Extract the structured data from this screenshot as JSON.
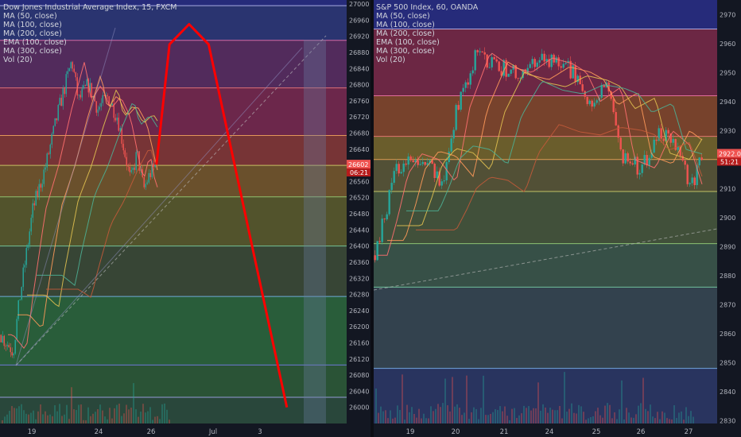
{
  "colors": {
    "background": "#131722",
    "up_candle": "#26a69a",
    "down_candle": "#ef5350",
    "price_tag": "#ef5350",
    "forecast_arc": "#ff0000",
    "axis_text": "#b2b5be"
  },
  "panels": [
    {
      "id": "dji",
      "title": "Dow Jones Industrial Average Index, 15, FXCM",
      "indicators": [
        "MA (50, close)",
        "MA (100, close)",
        "MA (200, close)",
        "EMA (100, close)",
        "MA (300, close)",
        "Vol (20)"
      ],
      "price_tag": {
        "value": "26602",
        "countdown": "06:21"
      },
      "x_ticks": [
        "19",
        "24",
        "26",
        "Jul",
        "3"
      ]
    },
    {
      "id": "spx",
      "title": "S&P 500 Index, 60, OANDA",
      "indicators": [
        "MA (50, close)",
        "MA (100, close)",
        "MA (200, close)",
        "EMA (100, close)",
        "MA (300, close)",
        "Vol (20)"
      ],
      "price_tag": {
        "value": "2922.0",
        "countdown": "51:21"
      },
      "x_ticks": [
        "19",
        "20",
        "21",
        "24",
        "25",
        "26",
        "27"
      ]
    }
  ],
  "chart_data": [
    {
      "type": "candlestick",
      "title": "Dow Jones Industrial Average Index, 15, FXCM",
      "ylim": [
        25960,
        27010
      ],
      "y_ticks": [
        27000,
        26960,
        26920,
        26880,
        26840,
        26800,
        26760,
        26720,
        26680,
        26640,
        26600,
        26560,
        26520,
        26480,
        26440,
        26400,
        26360,
        26320,
        26280,
        26240,
        26200,
        26160,
        26120,
        26080,
        26040,
        26000
      ],
      "x_tick_labels": [
        "19",
        "24",
        "26",
        "Jul",
        "3"
      ],
      "close_path": [
        {
          "x": 0.0,
          "y": 26180
        },
        {
          "x": 0.04,
          "y": 26140
        },
        {
          "x": 0.06,
          "y": 26270
        },
        {
          "x": 0.1,
          "y": 26490
        },
        {
          "x": 0.14,
          "y": 26600
        },
        {
          "x": 0.18,
          "y": 26740
        },
        {
          "x": 0.22,
          "y": 26860
        },
        {
          "x": 0.24,
          "y": 26760
        },
        {
          "x": 0.27,
          "y": 26800
        },
        {
          "x": 0.3,
          "y": 26740
        },
        {
          "x": 0.33,
          "y": 26770
        },
        {
          "x": 0.36,
          "y": 26720
        },
        {
          "x": 0.38,
          "y": 26640
        },
        {
          "x": 0.4,
          "y": 26560
        },
        {
          "x": 0.42,
          "y": 26630
        },
        {
          "x": 0.44,
          "y": 26540
        },
        {
          "x": 0.46,
          "y": 26580
        },
        {
          "x": 0.48,
          "y": 26602
        }
      ],
      "fib_levels": [
        26996,
        26910,
        26792,
        26674,
        26600,
        26522,
        26400,
        26275,
        26105,
        26025
      ],
      "forecast_arc": [
        {
          "x": 0.48,
          "y": 26602
        },
        {
          "x": 0.52,
          "y": 26900
        },
        {
          "x": 0.58,
          "y": 26950
        },
        {
          "x": 0.64,
          "y": 26900
        },
        {
          "x": 0.72,
          "y": 26600
        },
        {
          "x": 0.8,
          "y": 26300
        },
        {
          "x": 0.88,
          "y": 26000
        }
      ],
      "last_price": 26602
    },
    {
      "type": "candlestick",
      "title": "S&P 500 Index, 60, OANDA",
      "ylim": [
        2829,
        2975
      ],
      "y_ticks": [
        2970,
        2960,
        2950,
        2940,
        2930,
        2920,
        2910,
        2900,
        2890,
        2880,
        2870,
        2860,
        2850,
        2840,
        2830
      ],
      "x_tick_labels": [
        "19",
        "20",
        "21",
        "24",
        "25",
        "26",
        "27"
      ],
      "close_path": [
        {
          "x": 0.0,
          "y": 2887
        },
        {
          "x": 0.03,
          "y": 2900
        },
        {
          "x": 0.06,
          "y": 2915
        },
        {
          "x": 0.1,
          "y": 2922
        },
        {
          "x": 0.15,
          "y": 2920
        },
        {
          "x": 0.2,
          "y": 2912
        },
        {
          "x": 0.24,
          "y": 2938
        },
        {
          "x": 0.3,
          "y": 2957
        },
        {
          "x": 0.36,
          "y": 2952
        },
        {
          "x": 0.42,
          "y": 2950
        },
        {
          "x": 0.48,
          "y": 2955
        },
        {
          "x": 0.54,
          "y": 2953
        },
        {
          "x": 0.58,
          "y": 2950
        },
        {
          "x": 0.62,
          "y": 2940
        },
        {
          "x": 0.68,
          "y": 2945
        },
        {
          "x": 0.72,
          "y": 2920
        },
        {
          "x": 0.78,
          "y": 2917
        },
        {
          "x": 0.83,
          "y": 2930
        },
        {
          "x": 0.88,
          "y": 2925
        },
        {
          "x": 0.92,
          "y": 2910
        },
        {
          "x": 0.96,
          "y": 2922
        }
      ],
      "fib_levels": [
        2965,
        2942,
        2928,
        2920,
        2909,
        2891,
        2876,
        2848
      ],
      "last_price": 2922.0
    }
  ]
}
